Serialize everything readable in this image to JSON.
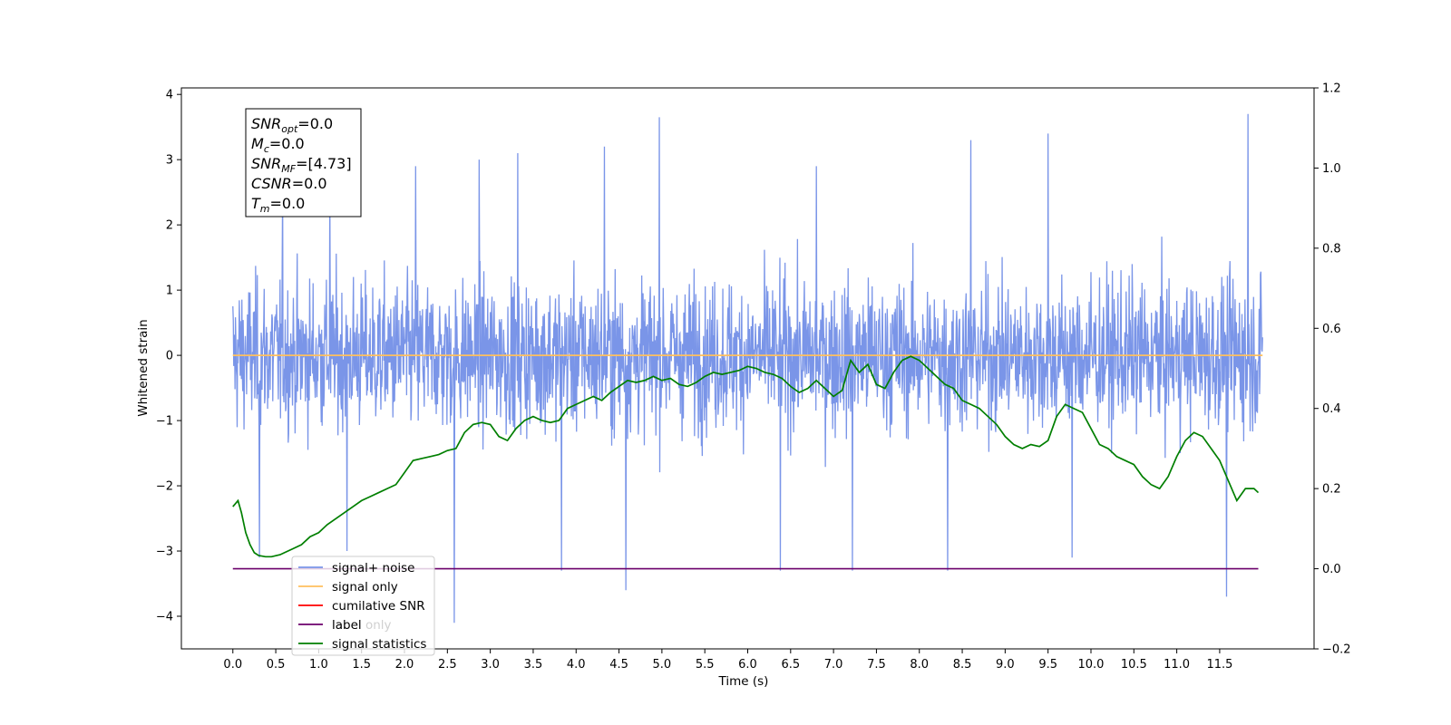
{
  "chart_data": {
    "type": "line",
    "xlabel": "Time (s)",
    "ylabel": "Whitened strain",
    "xlim": [
      -0.6,
      12.6
    ],
    "ylim_left": [
      -4.5,
      4.1
    ],
    "ylim_right": [
      -0.2,
      1.2
    ],
    "x_ticks": [
      "0.0",
      "0.5",
      "1.0",
      "1.5",
      "2.0",
      "2.5",
      "3.0",
      "3.5",
      "4.0",
      "4.5",
      "5.0",
      "5.5",
      "6.0",
      "6.5",
      "7.0",
      "7.5",
      "8.0",
      "8.5",
      "9.0",
      "9.5",
      "10.0",
      "10.5",
      "11.0",
      "11.5"
    ],
    "y_ticks_left": [
      "−4",
      "−3",
      "−2",
      "−1",
      "0",
      "1",
      "2",
      "3",
      "4"
    ],
    "y_ticks_right": [
      "−0.2",
      "0.0",
      "0.2",
      "0.4",
      "0.6",
      "0.8",
      "1.0",
      "1.2"
    ],
    "annotation": [
      {
        "sym": "SNR",
        "sub": "opt",
        "val": "=0.0"
      },
      {
        "sym": "M",
        "sub": "c",
        "val": "=0.0"
      },
      {
        "sym": "SNR",
        "sub": "MF",
        "val": "=[4.73]"
      },
      {
        "sym": "CSNR",
        "sub": "",
        "val": "=0.0"
      },
      {
        "sym": "T",
        "sub": "m",
        "val": "=0.0"
      }
    ],
    "legend": [
      {
        "label": "signal+ noise",
        "color": "#7a95e8"
      },
      {
        "label": "signal only",
        "color": "#ffbf5e"
      },
      {
        "label": "cumilative SNR",
        "color": "#ff0000"
      },
      {
        "label": "label",
        "color": "#6b006b"
      },
      {
        "label": "signal statistics",
        "color": "#007f00"
      }
    ],
    "hidden_legend_text": "label only",
    "series": [
      {
        "name": "signal+ noise",
        "axis": "left",
        "color": "#7a95e8",
        "x_range": [
          0.0,
          12.0
        ],
        "note_values": "dense Gaussian-like noise, approx range -2.5 to 2.5",
        "spikes": [
          [
            0.31,
            -3.1
          ],
          [
            0.58,
            2.6
          ],
          [
            1.13,
            2.6
          ],
          [
            1.33,
            -3.0
          ],
          [
            2.13,
            2.9
          ],
          [
            2.58,
            -4.1
          ],
          [
            2.87,
            3.0
          ],
          [
            3.32,
            3.1
          ],
          [
            3.83,
            -3.3
          ],
          [
            4.33,
            3.2
          ],
          [
            4.58,
            -3.6
          ],
          [
            4.97,
            3.65
          ],
          [
            6.38,
            -3.3
          ],
          [
            6.8,
            2.9
          ],
          [
            7.22,
            -3.3
          ],
          [
            8.33,
            -3.3
          ],
          [
            8.6,
            3.3
          ],
          [
            9.5,
            3.4
          ],
          [
            9.78,
            -3.1
          ],
          [
            11.58,
            -3.7
          ],
          [
            11.83,
            3.7
          ]
        ]
      },
      {
        "name": "signal only",
        "axis": "left",
        "color": "#ffbf5e",
        "x": [
          0.0,
          12.0
        ],
        "y": [
          0.0,
          0.0
        ]
      },
      {
        "name": "label",
        "axis": "right",
        "color": "#6b006b",
        "x": [
          0.0,
          11.95
        ],
        "y": [
          0.0,
          0.0
        ]
      },
      {
        "name": "signal statistics",
        "axis": "right",
        "color": "#007f00",
        "x": [
          0.0,
          0.06,
          0.1,
          0.15,
          0.2,
          0.25,
          0.3,
          0.38,
          0.45,
          0.55,
          0.6,
          0.7,
          0.8,
          0.9,
          1.0,
          1.1,
          1.2,
          1.3,
          1.4,
          1.5,
          1.6,
          1.7,
          1.8,
          1.9,
          2.0,
          2.1,
          2.2,
          2.3,
          2.4,
          2.5,
          2.6,
          2.7,
          2.8,
          2.9,
          3.0,
          3.1,
          3.2,
          3.3,
          3.4,
          3.5,
          3.6,
          3.7,
          3.8,
          3.9,
          4.0,
          4.1,
          4.2,
          4.3,
          4.4,
          4.5,
          4.6,
          4.7,
          4.8,
          4.9,
          5.0,
          5.1,
          5.2,
          5.3,
          5.4,
          5.5,
          5.6,
          5.7,
          5.8,
          5.9,
          6.0,
          6.1,
          6.2,
          6.3,
          6.4,
          6.5,
          6.6,
          6.7,
          6.8,
          6.9,
          7.0,
          7.1,
          7.2,
          7.3,
          7.4,
          7.5,
          7.6,
          7.7,
          7.8,
          7.9,
          8.0,
          8.1,
          8.2,
          8.3,
          8.4,
          8.5,
          8.6,
          8.7,
          8.8,
          8.9,
          9.0,
          9.1,
          9.2,
          9.3,
          9.4,
          9.5,
          9.6,
          9.7,
          9.8,
          9.9,
          10.0,
          10.1,
          10.2,
          10.3,
          10.4,
          10.5,
          10.6,
          10.7,
          10.8,
          10.9,
          11.0,
          11.1,
          11.2,
          11.3,
          11.4,
          11.5,
          11.6,
          11.7,
          11.8,
          11.9,
          11.95
        ],
        "y": [
          0.155,
          0.17,
          0.14,
          0.09,
          0.06,
          0.04,
          0.033,
          0.03,
          0.03,
          0.035,
          0.04,
          0.05,
          0.06,
          0.08,
          0.09,
          0.11,
          0.125,
          0.14,
          0.155,
          0.17,
          0.18,
          0.19,
          0.2,
          0.21,
          0.24,
          0.27,
          0.275,
          0.28,
          0.285,
          0.295,
          0.3,
          0.34,
          0.36,
          0.365,
          0.36,
          0.33,
          0.32,
          0.35,
          0.37,
          0.38,
          0.37,
          0.365,
          0.37,
          0.4,
          0.41,
          0.42,
          0.43,
          0.42,
          0.44,
          0.455,
          0.47,
          0.465,
          0.47,
          0.48,
          0.47,
          0.475,
          0.46,
          0.455,
          0.465,
          0.48,
          0.49,
          0.485,
          0.49,
          0.495,
          0.505,
          0.5,
          0.49,
          0.485,
          0.475,
          0.455,
          0.44,
          0.45,
          0.47,
          0.45,
          0.43,
          0.445,
          0.52,
          0.49,
          0.51,
          0.46,
          0.45,
          0.49,
          0.52,
          0.53,
          0.52,
          0.5,
          0.48,
          0.46,
          0.45,
          0.42,
          0.41,
          0.4,
          0.38,
          0.36,
          0.33,
          0.31,
          0.3,
          0.31,
          0.305,
          0.32,
          0.38,
          0.41,
          0.4,
          0.39,
          0.35,
          0.31,
          0.3,
          0.28,
          0.27,
          0.26,
          0.23,
          0.21,
          0.2,
          0.23,
          0.28,
          0.32,
          0.34,
          0.33,
          0.3,
          0.27,
          0.22,
          0.17,
          0.2,
          0.2,
          0.19
        ]
      }
    ]
  }
}
